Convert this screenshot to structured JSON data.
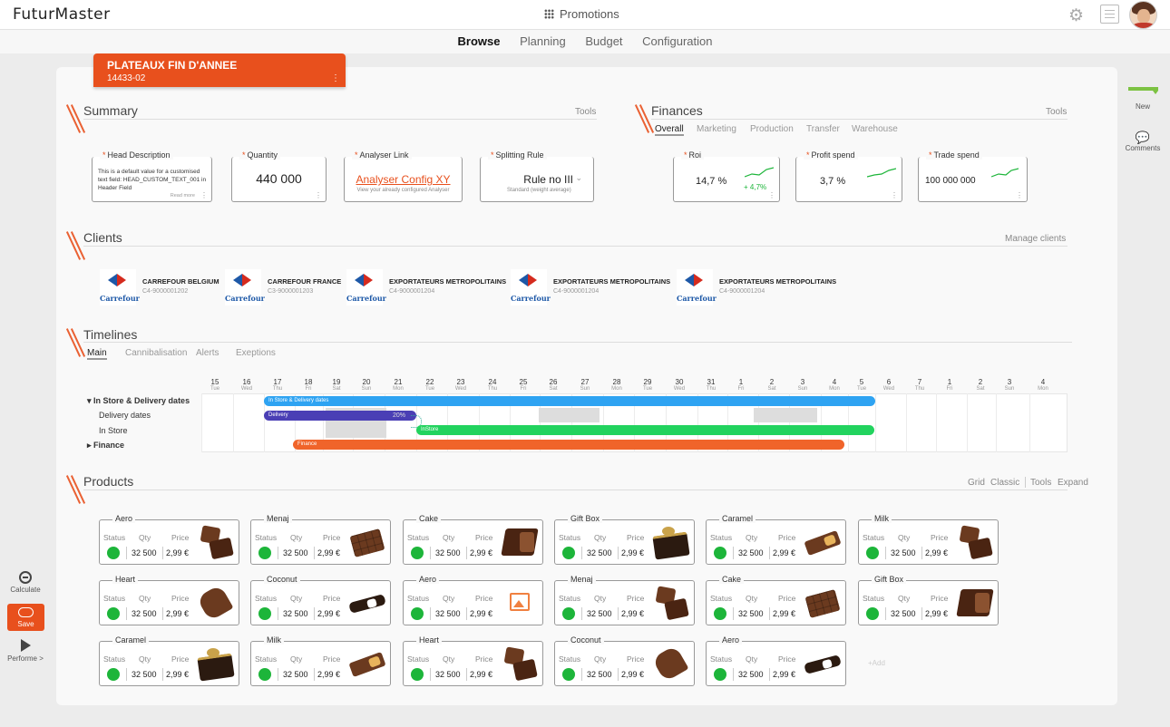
{
  "app": {
    "logo": "FuturMaster",
    "title": "Promotions"
  },
  "nav": [
    "Browse",
    "Planning",
    "Budget",
    "Configuration"
  ],
  "promo": {
    "name": "PLATEAUX FIN D'ANNEE",
    "code": "14433-02",
    "menu": "⋮"
  },
  "summary": {
    "title": "Summary",
    "tools": "Tools",
    "head_label": "Head Description",
    "head_text": "This is a default value for a customised text field: HEAD_CUSTOM_TEXT_001 in Header Field",
    "read_more": "Read more",
    "qty_label": "Quantity",
    "qty_value": "440 000",
    "analyser_label": "Analyser Link",
    "analyser_value": "Analyser Config XY",
    "analyser_hint": "View your already configured Analyser",
    "split_label": "Splitting Rule",
    "split_value": "Rule no III",
    "split_hint": "Standard (weight average)"
  },
  "finances": {
    "title": "Finances",
    "tools": "Tools",
    "tabs": [
      "Overall",
      "Marketing",
      "Production",
      "Transfer",
      "Warehouse"
    ],
    "roi_label": "Roi",
    "roi_value": "14,7 %",
    "roi_delta": "+ 4,7%",
    "profit_label": "Profit spend",
    "profit_value": "3,7 %",
    "trade_label": "Trade spend",
    "trade_value": "100 000 000",
    "trend_color": "#1db53a"
  },
  "clients": {
    "title": "Clients",
    "tools": "Manage clients",
    "brand": "Carrefour",
    "items": [
      {
        "name": "CARREFOUR BELGIUM",
        "code": "C4-9000001202"
      },
      {
        "name": "CARREFOUR FRANCE",
        "code": "C3-9000001203"
      },
      {
        "name": "EXPORTATEURS METROPOLITAINS",
        "code": "C4-9000001204"
      },
      {
        "name": "EXPORTATEURS METROPOLITAINS",
        "code": "C4-9000001204"
      },
      {
        "name": "EXPORTATEURS METROPOLITAINS",
        "code": "C4-9000001204"
      }
    ]
  },
  "timelines": {
    "title": "Timelines",
    "tabs": [
      "Main",
      "Cannibalisation",
      "Alerts",
      "Exeptions"
    ],
    "days": [
      {
        "d": "15",
        "w": "Tue"
      },
      {
        "d": "16",
        "w": "Wed"
      },
      {
        "d": "17",
        "w": "Thu"
      },
      {
        "d": "18",
        "w": "Fri"
      },
      {
        "d": "19",
        "w": "Sat"
      },
      {
        "d": "20",
        "w": "Sun"
      },
      {
        "d": "21",
        "w": "Mon"
      },
      {
        "d": "22",
        "w": "Tue"
      },
      {
        "d": "23",
        "w": "Wed"
      },
      {
        "d": "24",
        "w": "Thu"
      },
      {
        "d": "25",
        "w": "Fri"
      },
      {
        "d": "26",
        "w": "Sat"
      },
      {
        "d": "27",
        "w": "Sun"
      },
      {
        "d": "28",
        "w": "Mon"
      },
      {
        "d": "29",
        "w": "Tue"
      },
      {
        "d": "30",
        "w": "Wed"
      },
      {
        "d": "31",
        "w": "Thu"
      },
      {
        "d": "1",
        "w": "Fri"
      },
      {
        "d": "2",
        "w": "Sat"
      },
      {
        "d": "3",
        "w": "Sun"
      },
      {
        "d": "4",
        "w": "Mon"
      },
      {
        "d": "5",
        "w": "Tue"
      },
      {
        "d": "6",
        "w": "Wed"
      },
      {
        "d": "7",
        "w": "Thu"
      },
      {
        "d": "1",
        "w": "Fri"
      },
      {
        "d": "2",
        "w": "Sat"
      },
      {
        "d": "3",
        "w": "Sun"
      },
      {
        "d": "4",
        "w": "Mon"
      }
    ],
    "rows": [
      "In Store & Delivery dates",
      "Delivery dates",
      "In Store",
      "Finance"
    ],
    "bar_main": "In Store & Delivery dates",
    "bar_delivery": "Delivery",
    "bar_delivery_pct": "20%",
    "bar_instore": "InStore",
    "bar_finance": "Finance",
    "colors": {
      "main": "#2ea3f2",
      "delivery": "#4a3fb5",
      "instore": "#22d35e",
      "finance": "#f0642a"
    }
  },
  "products": {
    "title": "Products",
    "tools": [
      "Grid",
      "Classic",
      "Tools",
      "Expand"
    ],
    "headers": {
      "status": "Status",
      "qty": "Qty",
      "price": "Price"
    },
    "add": "+Add",
    "items": [
      {
        "name": "Aero",
        "qty": "32 500",
        "price": "2,99 €",
        "img": "pieces"
      },
      {
        "name": "Menaj",
        "qty": "32 500",
        "price": "2,99 €",
        "img": "tablet"
      },
      {
        "name": "Cake",
        "qty": "32 500",
        "price": "2,99 €",
        "img": "cake"
      },
      {
        "name": "Gift Box",
        "qty": "32 500",
        "price": "2,99 €",
        "img": "giftbox"
      },
      {
        "name": "Caramel",
        "qty": "32 500",
        "price": "2,99 €",
        "img": "bar"
      },
      {
        "name": "Milk",
        "qty": "32 500",
        "price": "2,99 €",
        "img": "pieces"
      },
      {
        "name": "Heart",
        "qty": "32 500",
        "price": "2,99 €",
        "img": "heart"
      },
      {
        "name": "Coconut",
        "qty": "32 500",
        "price": "2,99 €",
        "img": "coconut"
      },
      {
        "name": "Aero",
        "qty": "32 500",
        "price": "2,99 €",
        "img": "placeholder"
      },
      {
        "name": "Menaj",
        "qty": "32 500",
        "price": "2,99 €",
        "img": "pieces"
      },
      {
        "name": "Cake",
        "qty": "32 500",
        "price": "2,99 €",
        "img": "tablet"
      },
      {
        "name": "Gift Box",
        "qty": "32 500",
        "price": "2,99 €",
        "img": "cake"
      },
      {
        "name": "Caramel",
        "qty": "32 500",
        "price": "2,99 €",
        "img": "giftbox"
      },
      {
        "name": "Milk",
        "qty": "32 500",
        "price": "2,99 €",
        "img": "bar"
      },
      {
        "name": "Heart",
        "qty": "32 500",
        "price": "2,99 €",
        "img": "pieces"
      },
      {
        "name": "Coconut",
        "qty": "32 500",
        "price": "2,99 €",
        "img": "heart"
      },
      {
        "name": "Aero",
        "qty": "32 500",
        "price": "2,99 €",
        "img": "coconut"
      }
    ]
  },
  "left_tools": {
    "calculate": "Calculate",
    "save": "Save",
    "perform": "Performe >"
  },
  "right_tools": {
    "new": "New",
    "comments": "Comments"
  }
}
